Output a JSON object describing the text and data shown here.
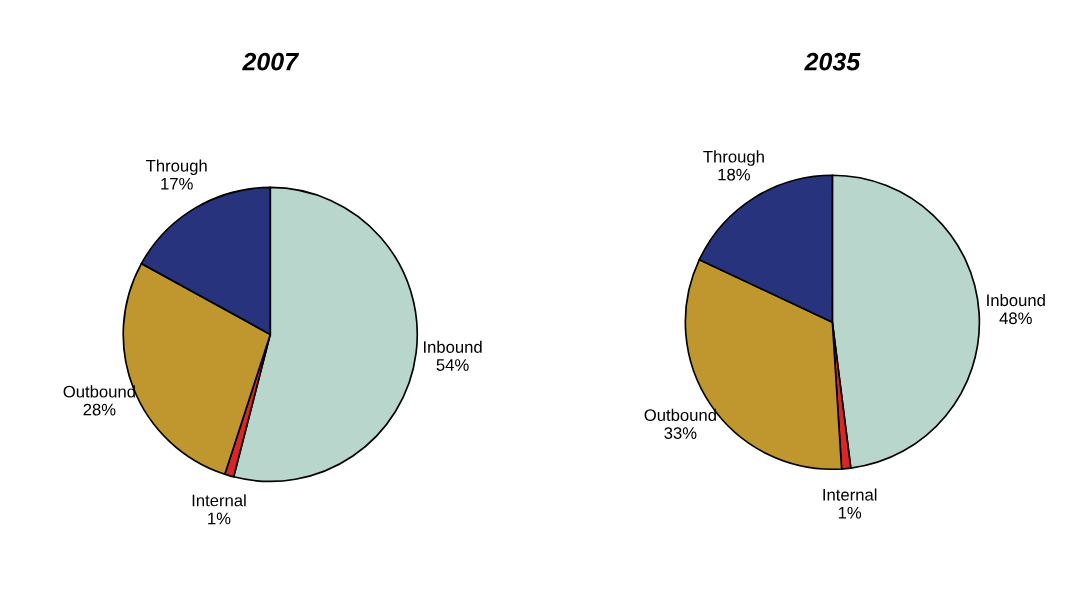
{
  "chart_data": [
    {
      "type": "pie",
      "title": "2007",
      "categories": [
        "Inbound",
        "Internal",
        "Outbound",
        "Through"
      ],
      "values": [
        54,
        1,
        28,
        17
      ],
      "value_labels": [
        "54%",
        "1%",
        "28%",
        "17%"
      ],
      "colors": [
        "#b8d6cb",
        "#d9262b",
        "#c0962e",
        "#27337c"
      ]
    },
    {
      "type": "pie",
      "title": "2035",
      "categories": [
        "Inbound",
        "Internal",
        "Outbound",
        "Through"
      ],
      "values": [
        48,
        1,
        33,
        18
      ],
      "value_labels": [
        "48%",
        "1%",
        "33%",
        "18%"
      ],
      "colors": [
        "#b8d6cb",
        "#d9262b",
        "#c0962e",
        "#27337c"
      ]
    }
  ]
}
